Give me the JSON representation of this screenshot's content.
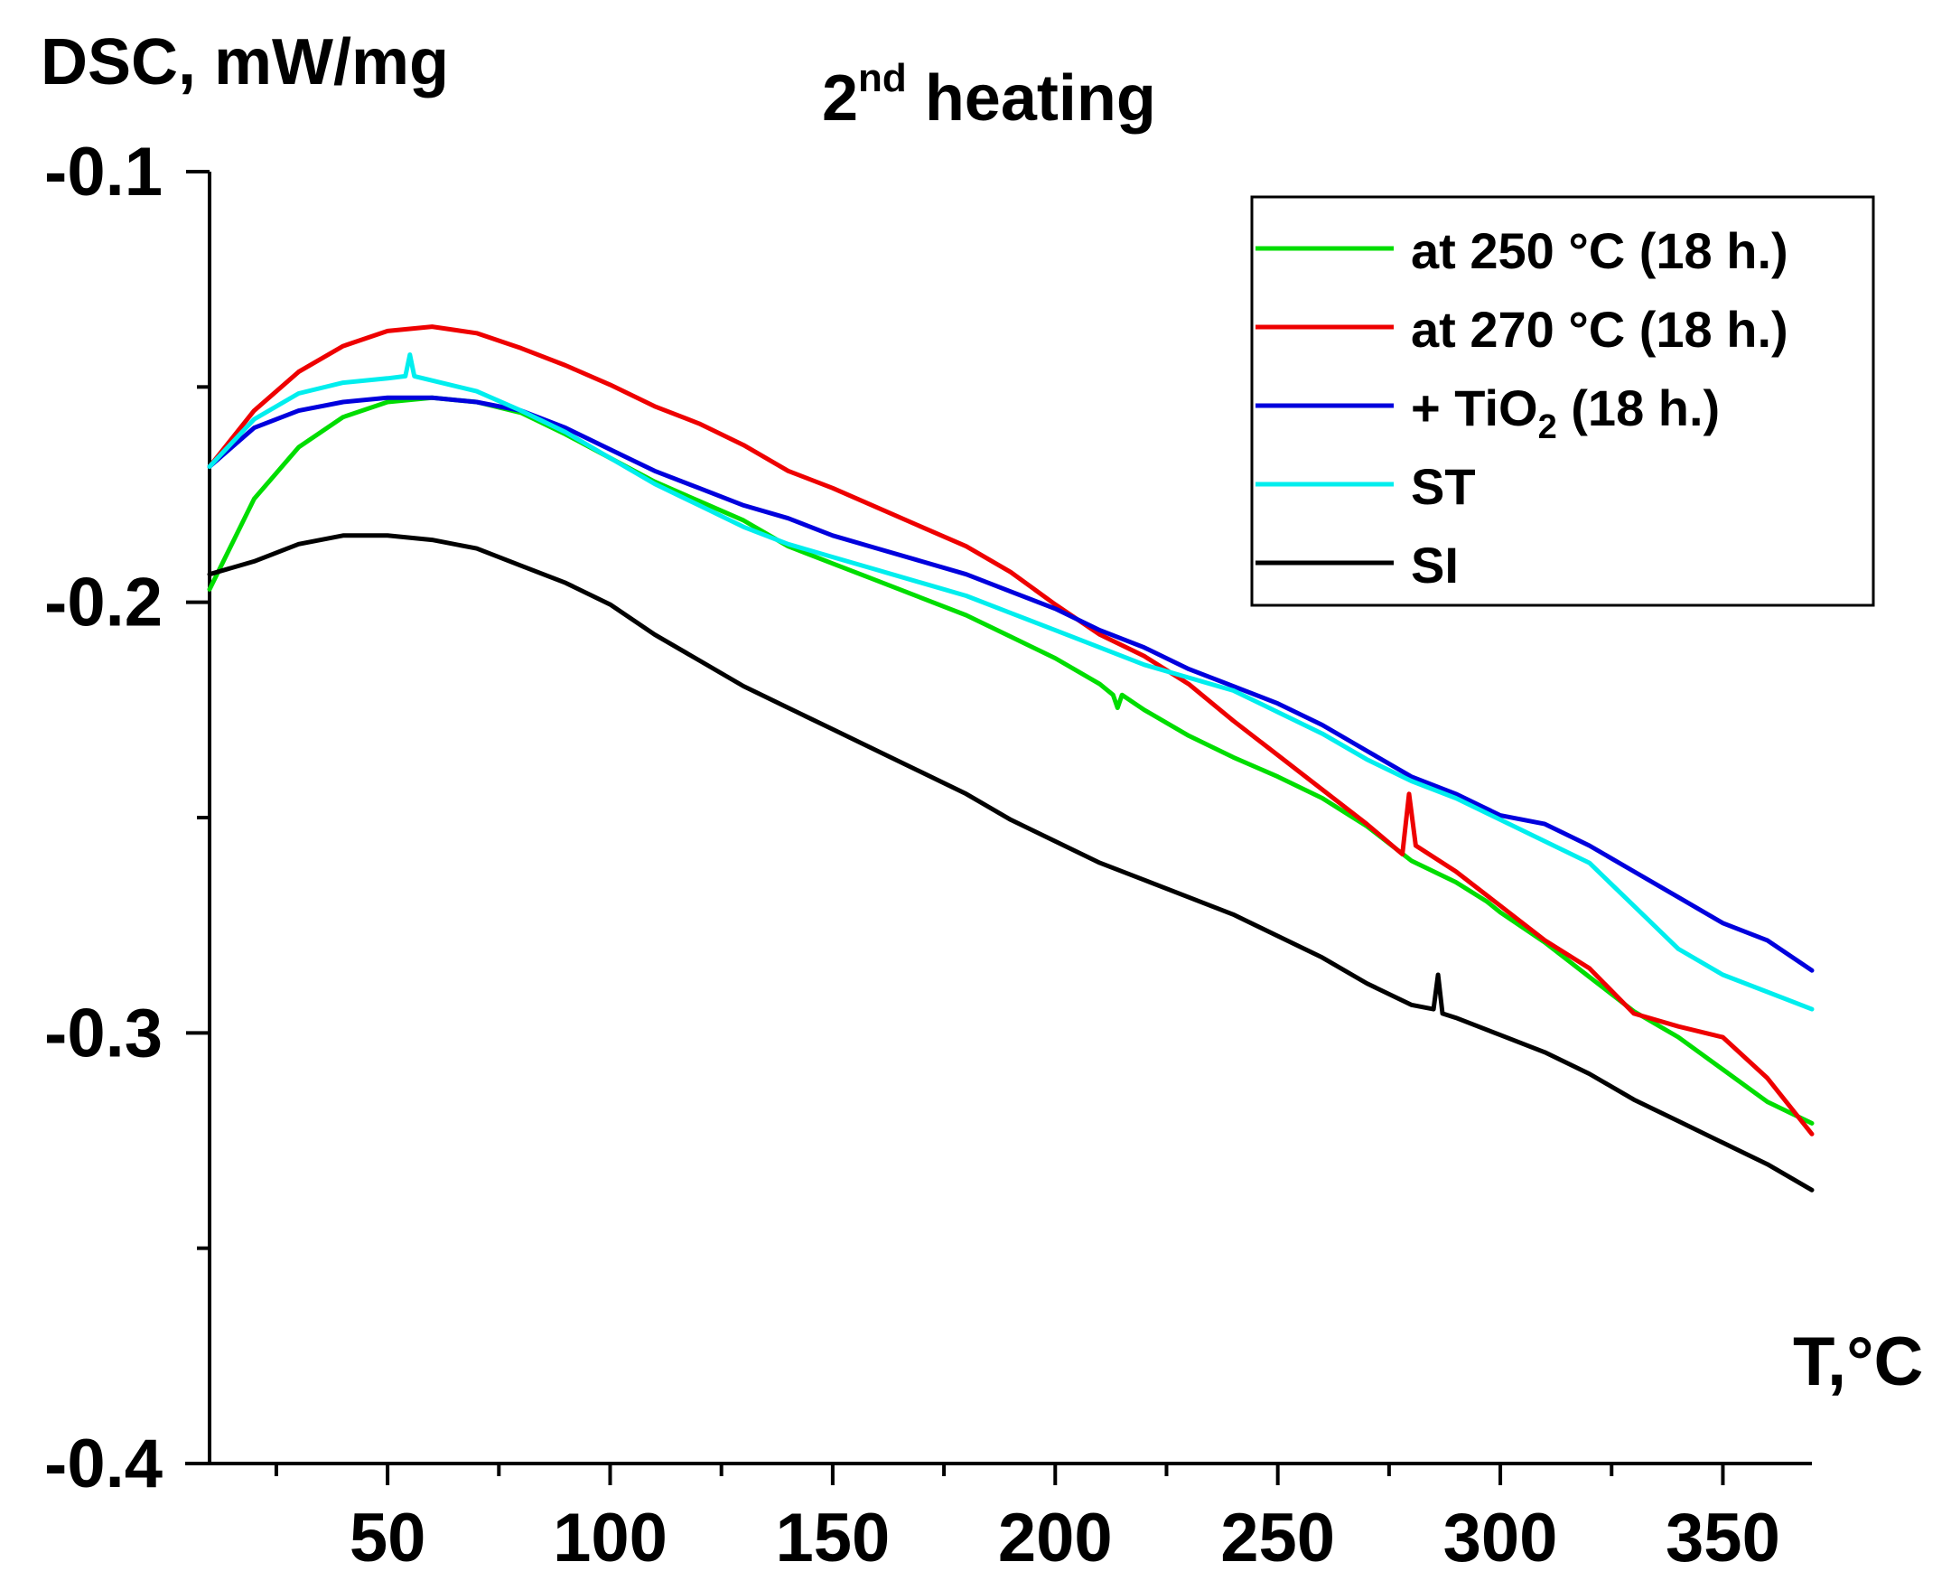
{
  "chart_data": {
    "type": "line",
    "title": {
      "main": "2",
      "sup": "nd",
      "rest": " heating"
    },
    "ylabel": "DSC, mW/mg",
    "xlabel": "T,°C",
    "xlim": [
      10,
      370
    ],
    "ylim": [
      -0.4,
      -0.1
    ],
    "xticks_major": [
      50,
      100,
      150,
      200,
      250,
      300,
      350
    ],
    "xtick_labels": [
      "50",
      "100",
      "150",
      "200",
      "250",
      "300",
      "350"
    ],
    "xticks_minor": [
      25,
      75,
      125,
      175,
      225,
      275,
      325
    ],
    "yticks_major": [
      -0.1,
      -0.2,
      -0.3,
      -0.4
    ],
    "ytick_labels": [
      "-0.1",
      "-0.2",
      "-0.3",
      "-0.4"
    ],
    "yticks_minor": [
      -0.15,
      -0.25,
      -0.35
    ],
    "grid": false,
    "legend_position": "top-right",
    "series": [
      {
        "name": "at 250 °C (18 h.)",
        "label": {
          "text": "at 250 °C (18 h.)"
        },
        "color": "#00dd00",
        "points": [
          [
            10,
            -0.197
          ],
          [
            20,
            -0.176
          ],
          [
            30,
            -0.164
          ],
          [
            40,
            -0.157
          ],
          [
            50,
            -0.1535
          ],
          [
            60,
            -0.1525
          ],
          [
            70,
            -0.1535
          ],
          [
            80,
            -0.156
          ],
          [
            90,
            -0.161
          ],
          [
            100,
            -0.1665
          ],
          [
            110,
            -0.172
          ],
          [
            120,
            -0.1765
          ],
          [
            130,
            -0.181
          ],
          [
            140,
            -0.187
          ],
          [
            150,
            -0.191
          ],
          [
            160,
            -0.195
          ],
          [
            170,
            -0.199
          ],
          [
            180,
            -0.203
          ],
          [
            190,
            -0.208
          ],
          [
            200,
            -0.213
          ],
          [
            210,
            -0.219
          ],
          [
            213,
            -0.2215
          ],
          [
            214,
            -0.2245
          ],
          [
            215,
            -0.2215
          ],
          [
            220,
            -0.225
          ],
          [
            230,
            -0.231
          ],
          [
            240,
            -0.236
          ],
          [
            250,
            -0.2405
          ],
          [
            260,
            -0.2455
          ],
          [
            270,
            -0.252
          ],
          [
            280,
            -0.26
          ],
          [
            290,
            -0.265
          ],
          [
            297,
            -0.2695
          ],
          [
            300,
            -0.272
          ],
          [
            310,
            -0.279
          ],
          [
            320,
            -0.287
          ],
          [
            330,
            -0.295
          ],
          [
            340,
            -0.301
          ],
          [
            350,
            -0.3085
          ],
          [
            360,
            -0.316
          ],
          [
            370,
            -0.321
          ]
        ]
      },
      {
        "name": "at 270 °C (18 h.)",
        "label": {
          "text": "at 270 °C (18 h.)"
        },
        "color": "#ee0000",
        "points": [
          [
            10,
            -0.1685
          ],
          [
            20,
            -0.1555
          ],
          [
            30,
            -0.1465
          ],
          [
            40,
            -0.1405
          ],
          [
            50,
            -0.137
          ],
          [
            60,
            -0.136
          ],
          [
            70,
            -0.1375
          ],
          [
            80,
            -0.141
          ],
          [
            90,
            -0.145
          ],
          [
            100,
            -0.1495
          ],
          [
            110,
            -0.1545
          ],
          [
            120,
            -0.1585
          ],
          [
            130,
            -0.1635
          ],
          [
            140,
            -0.1695
          ],
          [
            150,
            -0.1735
          ],
          [
            160,
            -0.178
          ],
          [
            170,
            -0.1825
          ],
          [
            180,
            -0.187
          ],
          [
            190,
            -0.193
          ],
          [
            200,
            -0.2005
          ],
          [
            210,
            -0.2075
          ],
          [
            220,
            -0.2125
          ],
          [
            230,
            -0.219
          ],
          [
            240,
            -0.2275
          ],
          [
            250,
            -0.2355
          ],
          [
            260,
            -0.2435
          ],
          [
            270,
            -0.2515
          ],
          [
            278,
            -0.2585
          ],
          [
            279.5,
            -0.2445
          ],
          [
            281,
            -0.2565
          ],
          [
            290,
            -0.2625
          ],
          [
            300,
            -0.2705
          ],
          [
            310,
            -0.2785
          ],
          [
            320,
            -0.285
          ],
          [
            330,
            -0.2955
          ],
          [
            340,
            -0.2985
          ],
          [
            350,
            -0.301
          ],
          [
            360,
            -0.3105
          ],
          [
            370,
            -0.3235
          ]
        ]
      },
      {
        "name": "+ TiO2 (18 h.)",
        "label": {
          "text": "+ TiO",
          "sub": "2",
          "tail": " (18 h.)"
        },
        "color": "#0000dd",
        "points": [
          [
            10,
            -0.1685
          ],
          [
            20,
            -0.1595
          ],
          [
            30,
            -0.1555
          ],
          [
            40,
            -0.1535
          ],
          [
            50,
            -0.1525
          ],
          [
            60,
            -0.1525
          ],
          [
            70,
            -0.1535
          ],
          [
            80,
            -0.1555
          ],
          [
            90,
            -0.1595
          ],
          [
            100,
            -0.1645
          ],
          [
            110,
            -0.1695
          ],
          [
            120,
            -0.1735
          ],
          [
            130,
            -0.1775
          ],
          [
            140,
            -0.1805
          ],
          [
            150,
            -0.1845
          ],
          [
            160,
            -0.1875
          ],
          [
            170,
            -0.1905
          ],
          [
            180,
            -0.1935
          ],
          [
            190,
            -0.1975
          ],
          [
            200,
            -0.2015
          ],
          [
            210,
            -0.2065
          ],
          [
            220,
            -0.2105
          ],
          [
            230,
            -0.2155
          ],
          [
            240,
            -0.2195
          ],
          [
            250,
            -0.2235
          ],
          [
            260,
            -0.2285
          ],
          [
            270,
            -0.2345
          ],
          [
            280,
            -0.2405
          ],
          [
            290,
            -0.2445
          ],
          [
            300,
            -0.2495
          ],
          [
            310,
            -0.2515
          ],
          [
            320,
            -0.2565
          ],
          [
            330,
            -0.2625
          ],
          [
            340,
            -0.2685
          ],
          [
            350,
            -0.2745
          ],
          [
            360,
            -0.2785
          ],
          [
            370,
            -0.2855
          ]
        ]
      },
      {
        "name": "ST",
        "label": {
          "text": "ST"
        },
        "color": "#00eeee",
        "points": [
          [
            10,
            -0.1685
          ],
          [
            20,
            -0.1575
          ],
          [
            30,
            -0.1515
          ],
          [
            40,
            -0.149
          ],
          [
            50,
            -0.148
          ],
          [
            54,
            -0.1475
          ],
          [
            55,
            -0.1425
          ],
          [
            56,
            -0.1475
          ],
          [
            60,
            -0.1485
          ],
          [
            70,
            -0.151
          ],
          [
            80,
            -0.1555
          ],
          [
            90,
            -0.1605
          ],
          [
            100,
            -0.1665
          ],
          [
            110,
            -0.1725
          ],
          [
            120,
            -0.1775
          ],
          [
            130,
            -0.1825
          ],
          [
            140,
            -0.1865
          ],
          [
            150,
            -0.1895
          ],
          [
            160,
            -0.1925
          ],
          [
            170,
            -0.1955
          ],
          [
            180,
            -0.1985
          ],
          [
            190,
            -0.2025
          ],
          [
            200,
            -0.2065
          ],
          [
            210,
            -0.2105
          ],
          [
            220,
            -0.2145
          ],
          [
            230,
            -0.2175
          ],
          [
            240,
            -0.2205
          ],
          [
            250,
            -0.2255
          ],
          [
            260,
            -0.2305
          ],
          [
            270,
            -0.2365
          ],
          [
            280,
            -0.2415
          ],
          [
            290,
            -0.2455
          ],
          [
            300,
            -0.2505
          ],
          [
            310,
            -0.2555
          ],
          [
            320,
            -0.2605
          ],
          [
            330,
            -0.2705
          ],
          [
            340,
            -0.2805
          ],
          [
            350,
            -0.2865
          ],
          [
            360,
            -0.2905
          ],
          [
            370,
            -0.2945
          ]
        ]
      },
      {
        "name": "SI",
        "label": {
          "text": "SI"
        },
        "color": "#000000",
        "points": [
          [
            10,
            -0.1935
          ],
          [
            20,
            -0.1905
          ],
          [
            30,
            -0.1865
          ],
          [
            40,
            -0.1845
          ],
          [
            50,
            -0.1845
          ],
          [
            60,
            -0.1855
          ],
          [
            70,
            -0.1875
          ],
          [
            80,
            -0.1915
          ],
          [
            90,
            -0.1955
          ],
          [
            100,
            -0.2005
          ],
          [
            110,
            -0.2075
          ],
          [
            120,
            -0.2135
          ],
          [
            130,
            -0.2195
          ],
          [
            140,
            -0.2245
          ],
          [
            150,
            -0.2295
          ],
          [
            160,
            -0.2345
          ],
          [
            170,
            -0.2395
          ],
          [
            180,
            -0.2445
          ],
          [
            190,
            -0.2505
          ],
          [
            200,
            -0.2555
          ],
          [
            210,
            -0.2605
          ],
          [
            220,
            -0.2645
          ],
          [
            230,
            -0.2685
          ],
          [
            240,
            -0.2725
          ],
          [
            250,
            -0.2775
          ],
          [
            260,
            -0.2825
          ],
          [
            270,
            -0.2885
          ],
          [
            280,
            -0.2935
          ],
          [
            285,
            -0.2945
          ],
          [
            286,
            -0.2865
          ],
          [
            287,
            -0.2955
          ],
          [
            290,
            -0.2965
          ],
          [
            300,
            -0.3005
          ],
          [
            310,
            -0.3045
          ],
          [
            320,
            -0.3095
          ],
          [
            330,
            -0.3155
          ],
          [
            340,
            -0.3205
          ],
          [
            350,
            -0.3255
          ],
          [
            360,
            -0.3305
          ],
          [
            370,
            -0.3365
          ]
        ]
      }
    ]
  }
}
